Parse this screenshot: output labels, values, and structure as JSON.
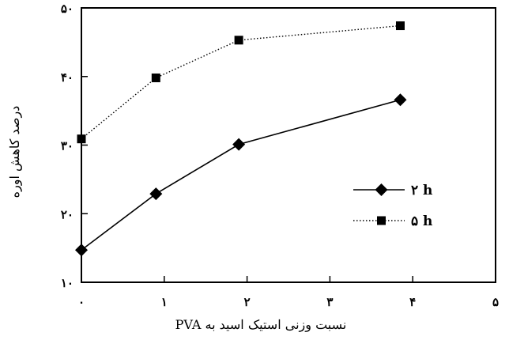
{
  "chart_data": {
    "type": "line",
    "title": "",
    "xlabel": "نسبت وزنی استیک اسید به PVA",
    "ylabel": "درصد کاهش اوره",
    "xlim": [
      0,
      5
    ],
    "ylim": [
      10,
      50
    ],
    "x_ticks": [
      0,
      1,
      2,
      3,
      4,
      5
    ],
    "x_tick_labels": [
      "۰",
      "۱",
      "۲",
      "۳",
      "۴",
      "۵"
    ],
    "y_ticks": [
      10,
      20,
      30,
      40,
      50
    ],
    "y_tick_labels": [
      "۱۰",
      "۲۰",
      "۳۰",
      "۴۰",
      "۵۰"
    ],
    "grid": false,
    "legend_position": "center-right",
    "series": [
      {
        "name": "۲ h",
        "marker": "diamond",
        "line_style": "solid",
        "color": "#000000",
        "x": [
          0,
          0.9,
          1.9,
          3.85
        ],
        "y": [
          14.7,
          22.9,
          30.1,
          36.6
        ]
      },
      {
        "name": "۵ h",
        "marker": "square",
        "line_style": "dotted",
        "color": "#000000",
        "x": [
          0,
          0.9,
          1.9,
          3.85
        ],
        "y": [
          30.9,
          39.8,
          45.3,
          47.4
        ]
      }
    ]
  }
}
